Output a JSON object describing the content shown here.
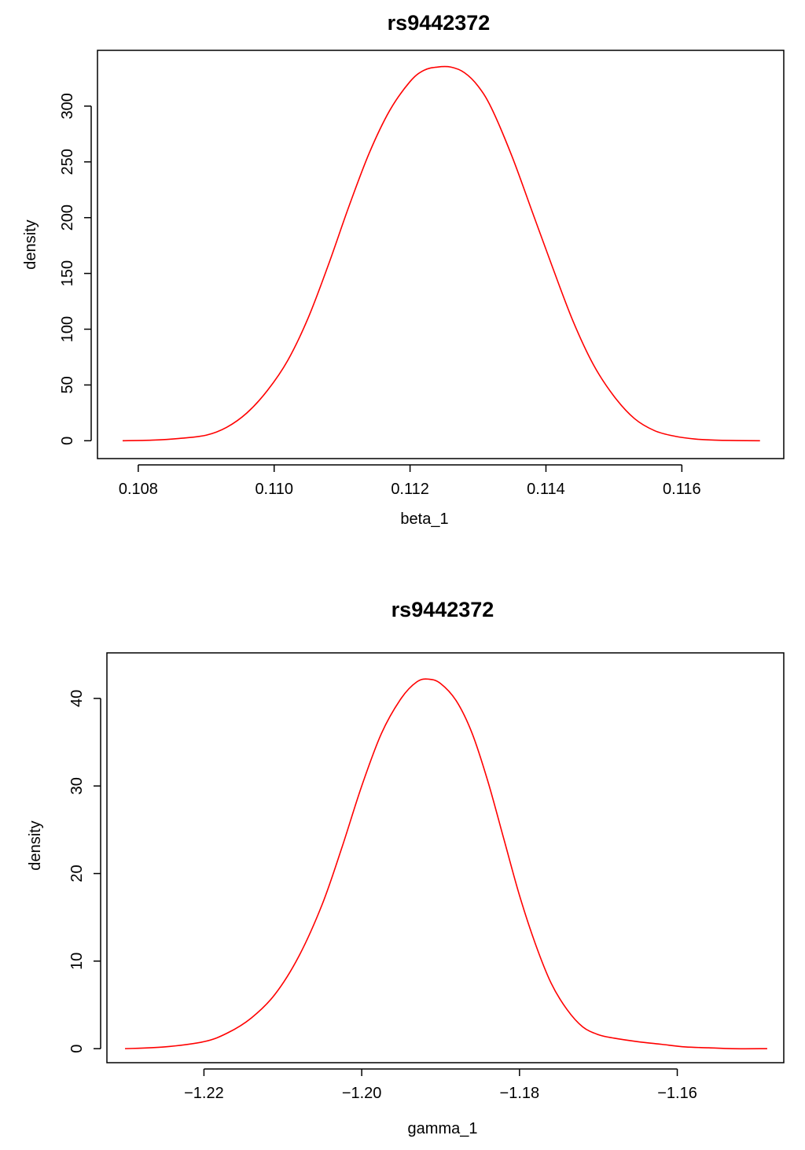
{
  "colors": {
    "curve": "#ff0000",
    "axis": "#000000",
    "background": "#ffffff"
  },
  "chart_data": [
    {
      "type": "line",
      "title": "rs9442372",
      "xlabel": "beta_1",
      "ylabel": "density",
      "xlim": [
        0.1074,
        0.1175
      ],
      "ylim": [
        -16,
        350
      ],
      "x_ticks": [
        0.108,
        0.11,
        0.112,
        0.114,
        0.116
      ],
      "x_tick_labels": [
        "0.108",
        "0.110",
        "0.112",
        "0.114",
        "0.116"
      ],
      "y_ticks": [
        0,
        50,
        100,
        150,
        200,
        250,
        300
      ],
      "y_tick_labels": [
        "0",
        "50",
        "100",
        "150",
        "200",
        "250",
        "300"
      ],
      "grid": false,
      "series": [
        {
          "color": "#ff0000",
          "x": [
            0.10777,
            0.1082,
            0.1086,
            0.109,
            0.1093,
            0.1096,
            0.1099,
            0.1102,
            0.1105,
            0.1108,
            0.1111,
            0.1114,
            0.1117,
            0.112,
            0.1122,
            0.1124,
            0.1126,
            0.1128,
            0.113,
            0.1132,
            0.1135,
            0.1138,
            0.1141,
            0.1144,
            0.1147,
            0.115,
            0.1153,
            0.1156,
            0.1159,
            0.1162,
            0.1165,
            0.1168,
            0.11715
          ],
          "y": [
            0,
            0.5,
            2,
            5,
            12,
            25,
            45,
            72,
            110,
            158,
            210,
            258,
            296,
            322,
            332,
            335,
            335,
            330,
            318,
            298,
            255,
            205,
            155,
            107,
            68,
            40,
            20,
            9,
            4,
            1.5,
            0.5,
            0.2,
            0
          ]
        }
      ]
    },
    {
      "type": "line",
      "title": "rs9442372",
      "xlabel": "gamma_1",
      "ylabel": "density",
      "xlim": [
        -1.2323,
        -1.1465
      ],
      "ylim": [
        -1.6,
        45.2
      ],
      "x_ticks": [
        -1.22,
        -1.2,
        -1.18,
        -1.16
      ],
      "x_tick_labels": [
        "−1.22",
        "−1.20",
        "−1.18",
        "−1.16"
      ],
      "y_ticks": [
        0,
        10,
        20,
        30,
        40
      ],
      "y_tick_labels": [
        "0",
        "10",
        "20",
        "30",
        "40"
      ],
      "grid": false,
      "series": [
        {
          "color": "#ff0000",
          "x": [
            -1.23,
            -1.225,
            -1.22,
            -1.217,
            -1.214,
            -1.211,
            -1.208,
            -1.205,
            -1.2025,
            -1.2,
            -1.1975,
            -1.195,
            -1.193,
            -1.1915,
            -1.19,
            -1.188,
            -1.186,
            -1.184,
            -1.182,
            -1.18,
            -1.178,
            -1.176,
            -1.174,
            -1.172,
            -1.17,
            -1.168,
            -1.165,
            -1.162,
            -1.159,
            -1.156,
            -1.153,
            -1.1486
          ],
          "y": [
            0,
            0.2,
            0.8,
            1.8,
            3.5,
            6.2,
            10.5,
            16.5,
            23,
            30,
            36,
            40,
            41.9,
            42.2,
            41.7,
            39.7,
            36,
            30.5,
            24,
            17.5,
            12,
            7.5,
            4.5,
            2.5,
            1.6,
            1.2,
            0.8,
            0.5,
            0.2,
            0.1,
            0,
            0
          ]
        }
      ]
    }
  ]
}
